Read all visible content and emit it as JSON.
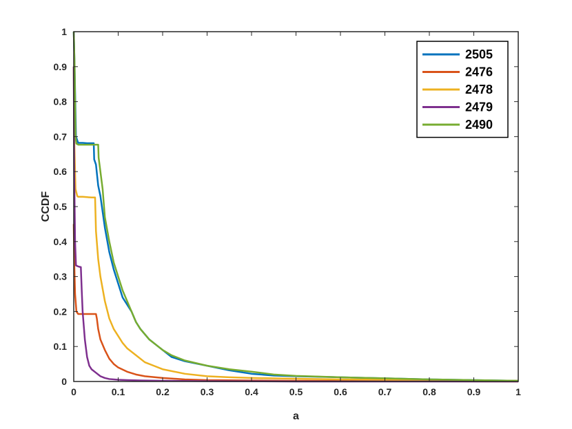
{
  "chart_data": {
    "type": "line",
    "title": "",
    "xlabel": "a",
    "ylabel": "CCDF",
    "xlim": [
      0,
      1
    ],
    "ylim": [
      0,
      1
    ],
    "xticks": [
      0,
      0.1,
      0.2,
      0.3,
      0.4,
      0.5,
      0.6,
      0.7,
      0.8,
      0.9,
      1
    ],
    "xtick_labels": [
      "0",
      "0.1",
      "0.2",
      "0.3",
      "0.4",
      "0.5",
      "0.6",
      "0.7",
      "0.8",
      "0.9",
      "1"
    ],
    "yticks": [
      0,
      0.1,
      0.2,
      0.3,
      0.4,
      0.5,
      0.6,
      0.7,
      0.8,
      0.9,
      1
    ],
    "ytick_labels": [
      "0",
      "0.1",
      "0.2",
      "0.3",
      "0.4",
      "0.5",
      "0.6",
      "0.7",
      "0.8",
      "0.9",
      "1"
    ],
    "grid": false,
    "legend_position": "top-right",
    "series": [
      {
        "name": "2505",
        "color": "#0072BD",
        "x": [
          0,
          0.002,
          0.005,
          0.01,
          0.02,
          0.03,
          0.045,
          0.046,
          0.05,
          0.055,
          0.06,
          0.07,
          0.08,
          0.09,
          0.1,
          0.11,
          0.12,
          0.13,
          0.14,
          0.15,
          0.17,
          0.19,
          0.2,
          0.22,
          0.25,
          0.3,
          0.35,
          0.4,
          0.45,
          0.5,
          0.6,
          0.7,
          0.8,
          0.9,
          1.0
        ],
        "y": [
          1.0,
          0.9,
          0.7,
          0.682,
          0.682,
          0.681,
          0.681,
          0.635,
          0.62,
          0.56,
          0.53,
          0.44,
          0.37,
          0.32,
          0.28,
          0.24,
          0.22,
          0.2,
          0.17,
          0.15,
          0.12,
          0.1,
          0.09,
          0.07,
          0.058,
          0.045,
          0.032,
          0.022,
          0.017,
          0.015,
          0.012,
          0.009,
          0.006,
          0.004,
          0.002
        ]
      },
      {
        "name": "2476",
        "color": "#D95319",
        "x": [
          0,
          0.001,
          0.003,
          0.006,
          0.01,
          0.02,
          0.03,
          0.04,
          0.05,
          0.052,
          0.055,
          0.06,
          0.07,
          0.08,
          0.09,
          0.1,
          0.12,
          0.14,
          0.16,
          0.2,
          0.25,
          0.3,
          0.4,
          0.5,
          0.7,
          1.0
        ],
        "y": [
          0.45,
          0.35,
          0.25,
          0.2,
          0.193,
          0.193,
          0.193,
          0.193,
          0.193,
          0.18,
          0.15,
          0.12,
          0.09,
          0.065,
          0.05,
          0.04,
          0.028,
          0.02,
          0.015,
          0.01,
          0.006,
          0.004,
          0.003,
          0.002,
          0.001,
          0.0
        ]
      },
      {
        "name": "2478",
        "color": "#EDB120",
        "x": [
          0,
          0.001,
          0.004,
          0.008,
          0.01,
          0.02,
          0.03,
          0.04,
          0.048,
          0.05,
          0.055,
          0.06,
          0.07,
          0.08,
          0.09,
          0.1,
          0.11,
          0.12,
          0.14,
          0.16,
          0.18,
          0.2,
          0.25,
          0.3,
          0.35,
          0.4,
          0.5,
          0.6,
          0.7,
          0.8,
          0.9,
          1.0
        ],
        "y": [
          0.9,
          0.7,
          0.55,
          0.53,
          0.528,
          0.528,
          0.527,
          0.526,
          0.526,
          0.43,
          0.35,
          0.3,
          0.23,
          0.18,
          0.15,
          0.13,
          0.11,
          0.095,
          0.075,
          0.055,
          0.045,
          0.035,
          0.022,
          0.015,
          0.012,
          0.01,
          0.008,
          0.006,
          0.005,
          0.004,
          0.003,
          0.002
        ]
      },
      {
        "name": "2479",
        "color": "#7E2F8E",
        "x": [
          0,
          0.001,
          0.003,
          0.005,
          0.008,
          0.012,
          0.016,
          0.018,
          0.02,
          0.025,
          0.03,
          0.035,
          0.04,
          0.05,
          0.06,
          0.07,
          0.08,
          0.1,
          0.12,
          0.15,
          0.2,
          0.3,
          0.5,
          1.0
        ],
        "y": [
          0.9,
          0.6,
          0.4,
          0.332,
          0.33,
          0.328,
          0.327,
          0.26,
          0.2,
          0.12,
          0.07,
          0.045,
          0.035,
          0.025,
          0.015,
          0.01,
          0.007,
          0.005,
          0.004,
          0.003,
          0.002,
          0.001,
          0.0,
          0.0
        ]
      },
      {
        "name": "2490",
        "color": "#77AC30",
        "x": [
          0,
          0.002,
          0.004,
          0.006,
          0.01,
          0.02,
          0.04,
          0.055,
          0.056,
          0.06,
          0.065,
          0.07,
          0.08,
          0.09,
          0.1,
          0.11,
          0.12,
          0.13,
          0.14,
          0.15,
          0.17,
          0.19,
          0.2,
          0.22,
          0.25,
          0.3,
          0.35,
          0.4,
          0.45,
          0.5,
          0.6,
          0.7,
          0.8,
          0.9,
          1.0
        ],
        "y": [
          1.0,
          0.9,
          0.7,
          0.68,
          0.677,
          0.677,
          0.677,
          0.677,
          0.64,
          0.6,
          0.55,
          0.47,
          0.4,
          0.34,
          0.3,
          0.26,
          0.23,
          0.2,
          0.17,
          0.15,
          0.12,
          0.1,
          0.09,
          0.075,
          0.06,
          0.045,
          0.035,
          0.028,
          0.02,
          0.016,
          0.012,
          0.009,
          0.006,
          0.004,
          0.002
        ]
      }
    ]
  }
}
